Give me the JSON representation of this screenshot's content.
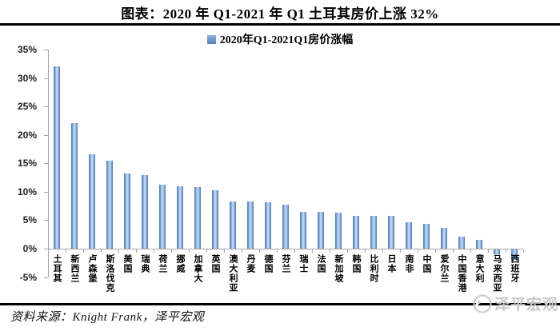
{
  "title": "图表：2020 年 Q1-2021 年 Q1 土耳其房价上涨 32%",
  "legend": {
    "label": "2020年Q1-2021Q1房价涨幅"
  },
  "source": "资料来源：Knight Frank，泽平宏观",
  "watermark": "泽平宏观",
  "colors": {
    "bar_edge": "#4a7ab8",
    "bar_light": "#85abd8",
    "bar_mid": "#c0d6ee",
    "legend_a": "#8fb2dd",
    "legend_b": "#4f81bd",
    "axis": "#a6a6a6",
    "watermark": "#c9c9c9"
  },
  "chart_data": {
    "type": "bar",
    "title": "图表：2020 年 Q1-2021 年 Q1 土耳其房价上涨 32%",
    "series_name": "2020年Q1-2021Q1房价涨幅",
    "categories": [
      "土耳其",
      "新西兰",
      "卢森堡",
      "斯洛伐克",
      "美国",
      "瑞典",
      "荷兰",
      "挪威",
      "加拿大",
      "英国",
      "澳大利亚",
      "丹麦",
      "德国",
      "芬兰",
      "瑞士",
      "法国",
      "新加坡",
      "韩国",
      "比利时",
      "日本",
      "南非",
      "中国",
      "爱尔兰",
      "中国香港",
      "意大利",
      "马来西亚",
      "西班牙"
    ],
    "values": [
      32.0,
      22.1,
      16.6,
      15.5,
      13.2,
      13.0,
      11.3,
      10.9,
      10.8,
      10.2,
      8.3,
      8.3,
      8.1,
      7.7,
      6.5,
      6.4,
      6.3,
      5.8,
      5.8,
      5.7,
      4.6,
      4.3,
      3.7,
      2.1,
      1.6,
      -0.9,
      -1.8
    ],
    "xlabel": "",
    "ylabel": "",
    "ylim": [
      -5,
      35
    ],
    "y_tick_step": 5,
    "y_tick_labels": [
      "35%",
      "30%",
      "25%",
      "20%",
      "15%",
      "10%",
      "5%",
      "0%",
      "-5%"
    ],
    "grid": false,
    "legend_position": "top-center"
  }
}
